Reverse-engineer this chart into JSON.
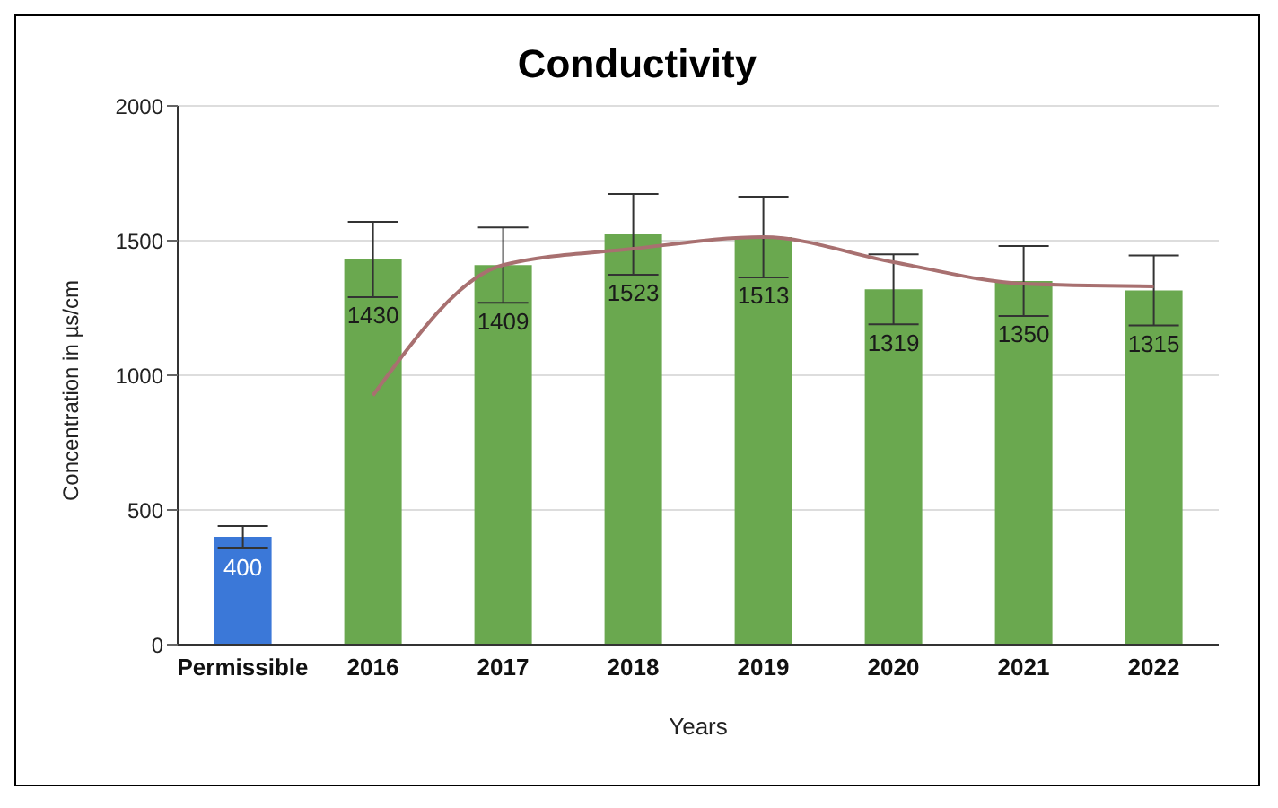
{
  "chart_data": {
    "type": "bar",
    "title": "Conductivity",
    "xlabel": "Years",
    "ylabel": "Concentration in µs/cm",
    "categories": [
      "Permissible",
      "2016",
      "2017",
      "2018",
      "2019",
      "2020",
      "2021",
      "2022"
    ],
    "series": [
      {
        "colors": [
          "#3b78d8",
          "#6aa84f",
          "#6aa84f",
          "#6aa84f",
          "#6aa84f",
          "#6aa84f",
          "#6aa84f",
          "#6aa84f"
        ],
        "values": [
          400,
          1430,
          1409,
          1523,
          1513,
          1319,
          1350,
          1315
        ],
        "value_labels": [
          "400",
          "1430",
          "1409",
          "1523",
          "1513",
          "1319",
          "1350",
          "1315"
        ],
        "errors": [
          40,
          140,
          140,
          150,
          150,
          130,
          130,
          130
        ]
      },
      {
        "type": "line",
        "color": "#a87070",
        "values": [
          null,
          925,
          1409,
          1470,
          1513,
          1420,
          1340,
          1330
        ]
      }
    ],
    "ylim": [
      0,
      2000
    ],
    "yticks": [
      0,
      500,
      1000,
      1500,
      2000
    ],
    "grid": "y",
    "legend": false,
    "marker": "none"
  }
}
